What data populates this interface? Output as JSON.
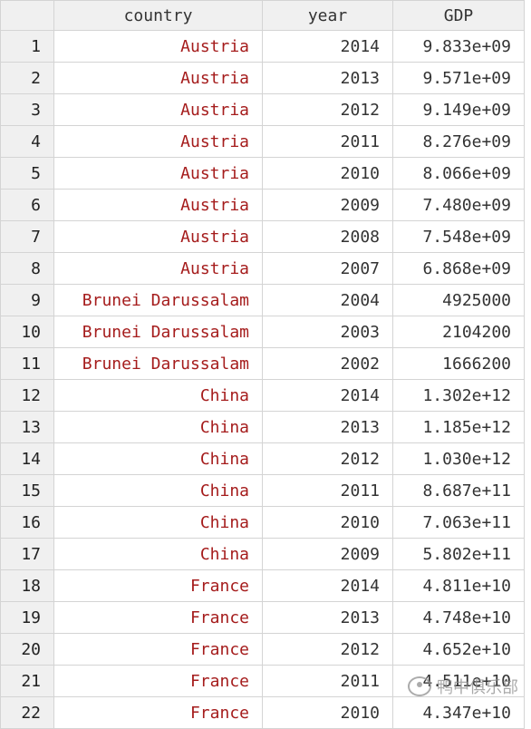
{
  "table": {
    "headers": {
      "index": "",
      "country": "country",
      "year": "year",
      "gdp": "GDP"
    },
    "rows": [
      {
        "idx": "1",
        "country": "Austria",
        "year": "2014",
        "gdp": "9.833e+09"
      },
      {
        "idx": "2",
        "country": "Austria",
        "year": "2013",
        "gdp": "9.571e+09"
      },
      {
        "idx": "3",
        "country": "Austria",
        "year": "2012",
        "gdp": "9.149e+09"
      },
      {
        "idx": "4",
        "country": "Austria",
        "year": "2011",
        "gdp": "8.276e+09"
      },
      {
        "idx": "5",
        "country": "Austria",
        "year": "2010",
        "gdp": "8.066e+09"
      },
      {
        "idx": "6",
        "country": "Austria",
        "year": "2009",
        "gdp": "7.480e+09"
      },
      {
        "idx": "7",
        "country": "Austria",
        "year": "2008",
        "gdp": "7.548e+09"
      },
      {
        "idx": "8",
        "country": "Austria",
        "year": "2007",
        "gdp": "6.868e+09"
      },
      {
        "idx": "9",
        "country": "Brunei Darussalam",
        "year": "2004",
        "gdp": "4925000"
      },
      {
        "idx": "10",
        "country": "Brunei Darussalam",
        "year": "2003",
        "gdp": "2104200"
      },
      {
        "idx": "11",
        "country": "Brunei Darussalam",
        "year": "2002",
        "gdp": "1666200"
      },
      {
        "idx": "12",
        "country": "China",
        "year": "2014",
        "gdp": "1.302e+12"
      },
      {
        "idx": "13",
        "country": "China",
        "year": "2013",
        "gdp": "1.185e+12"
      },
      {
        "idx": "14",
        "country": "China",
        "year": "2012",
        "gdp": "1.030e+12"
      },
      {
        "idx": "15",
        "country": "China",
        "year": "2011",
        "gdp": "8.687e+11"
      },
      {
        "idx": "16",
        "country": "China",
        "year": "2010",
        "gdp": "7.063e+11"
      },
      {
        "idx": "17",
        "country": "China",
        "year": "2009",
        "gdp": "5.802e+11"
      },
      {
        "idx": "18",
        "country": "France",
        "year": "2014",
        "gdp": "4.811e+10"
      },
      {
        "idx": "19",
        "country": "France",
        "year": "2013",
        "gdp": "4.748e+10"
      },
      {
        "idx": "20",
        "country": "France",
        "year": "2012",
        "gdp": "4.652e+10"
      },
      {
        "idx": "21",
        "country": "France",
        "year": "2011",
        "gdp": "4.511e+10"
      },
      {
        "idx": "22",
        "country": "France",
        "year": "2010",
        "gdp": "4.347e+10"
      }
    ]
  },
  "watermark": {
    "text": "鸭中俱乐部",
    "icon": "wechat-icon"
  },
  "colors": {
    "string_value": "#a51c1c",
    "header_bg": "#f0f0f0",
    "grid": "#d4d4d4"
  }
}
